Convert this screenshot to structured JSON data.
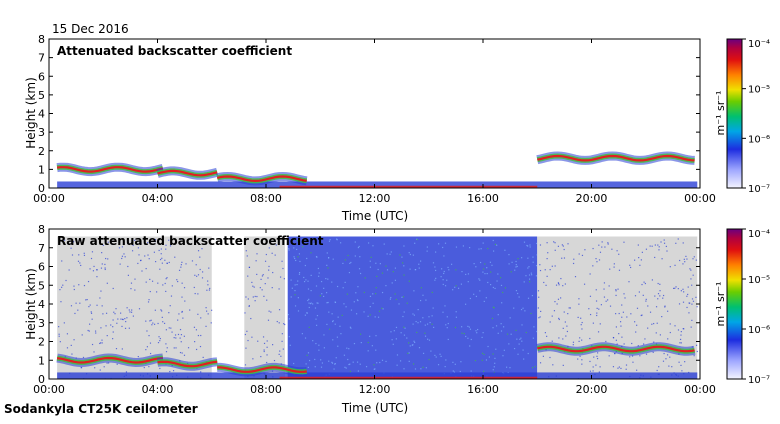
{
  "date_label": "15 Dec 2016",
  "footer_label": "Sodankyla CT25K ceilometer",
  "colors": {
    "background_plot": "#ffffff",
    "noise_gray": "#d7d7d7",
    "low_blue": "#2a3fd6",
    "mid_green": "#40c040",
    "high_red": "#e02020",
    "top_purple": "#6a0080"
  },
  "chart_data": [
    {
      "type": "heatmap",
      "title": "Attenuated backscatter coefficient",
      "xlabel": "Time (UTC)",
      "ylabel": "Height (km)",
      "xlim": [
        0,
        24
      ],
      "ylim": [
        0,
        8
      ],
      "xticks": [
        0,
        4,
        8,
        12,
        16,
        20,
        24
      ],
      "xtick_labels": [
        "00:00",
        "04:00",
        "08:00",
        "12:00",
        "16:00",
        "20:00",
        "00:00"
      ],
      "yticks": [
        0,
        1,
        2,
        3,
        4,
        5,
        6,
        7,
        8
      ],
      "ytick_labels": [
        "0",
        "1",
        "2",
        "3",
        "4",
        "5",
        "6",
        "7",
        "8"
      ],
      "colorbar": {
        "scale": "log",
        "range": [
          1e-07,
          0.0001
        ],
        "tick_labels": [
          "10⁻⁷",
          "10⁻⁶",
          "10⁻⁵",
          "10⁻⁴"
        ],
        "unit_label": "m⁻¹ sr⁻¹"
      },
      "noise_bands": [],
      "cloud_layers": [
        {
          "start_h": 0.3,
          "end_h": 4.2,
          "height_km": 1.0
        },
        {
          "start_h": 4.0,
          "end_h": 6.2,
          "height_km": 0.8
        },
        {
          "start_h": 6.2,
          "end_h": 9.5,
          "height_km": 0.5
        },
        {
          "start_h": 18.0,
          "end_h": 23.8,
          "height_km": 1.6
        }
      ]
    },
    {
      "type": "heatmap",
      "title": "Raw attenuated backscatter coefficient",
      "xlabel": "Time (UTC)",
      "ylabel": "Height (km)",
      "xlim": [
        0,
        24
      ],
      "ylim": [
        0,
        8
      ],
      "xticks": [
        0,
        4,
        8,
        12,
        16,
        20,
        24
      ],
      "xtick_labels": [
        "00:00",
        "04:00",
        "08:00",
        "12:00",
        "16:00",
        "20:00",
        "00:00"
      ],
      "yticks": [
        0,
        1,
        2,
        3,
        4,
        5,
        6,
        7,
        8
      ],
      "ytick_labels": [
        "0",
        "1",
        "2",
        "3",
        "4",
        "5",
        "6",
        "7",
        "8"
      ],
      "colorbar": {
        "scale": "log",
        "range": [
          1e-07,
          0.0001
        ],
        "tick_labels": [
          "10⁻⁷",
          "10⁻⁶",
          "10⁻⁵",
          "10⁻⁴"
        ],
        "unit_label": "m⁻¹ sr⁻¹"
      },
      "noise_bands": [
        {
          "start_h": 0.3,
          "end_h": 6.0,
          "level": "gray"
        },
        {
          "start_h": 7.2,
          "end_h": 8.7,
          "level": "gray"
        },
        {
          "start_h": 8.8,
          "end_h": 18.0,
          "level": "blue"
        },
        {
          "start_h": 18.0,
          "end_h": 23.9,
          "level": "gray"
        }
      ],
      "cloud_layers": [
        {
          "start_h": 0.3,
          "end_h": 4.2,
          "height_km": 1.0
        },
        {
          "start_h": 4.0,
          "end_h": 6.2,
          "height_km": 0.8
        },
        {
          "start_h": 6.2,
          "end_h": 9.5,
          "height_km": 0.5
        },
        {
          "start_h": 18.0,
          "end_h": 23.8,
          "height_km": 1.6
        }
      ]
    }
  ]
}
